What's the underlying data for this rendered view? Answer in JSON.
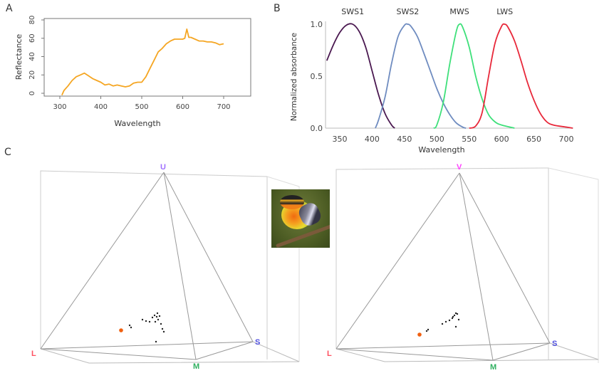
{
  "panels": {
    "a": "A",
    "b": "B",
    "c": "C"
  },
  "chart_data": [
    {
      "type": "line",
      "xlabel": "Wavelength",
      "ylabel": "Reflectance",
      "xlim": [
        260,
        750
      ],
      "ylim": [
        -3,
        85
      ],
      "xticks": [
        "300",
        "400",
        "500",
        "600",
        "700"
      ],
      "yticks": [
        "0",
        "20",
        "40",
        "60",
        "80"
      ],
      "color": "#f5a623",
      "x": [
        305,
        310,
        320,
        330,
        340,
        350,
        360,
        370,
        380,
        390,
        400,
        410,
        420,
        430,
        440,
        450,
        460,
        470,
        480,
        490,
        500,
        510,
        520,
        530,
        540,
        550,
        560,
        570,
        580,
        590,
        600,
        605,
        610,
        615,
        620,
        630,
        640,
        650,
        660,
        670,
        680,
        690,
        700
      ],
      "y": [
        -2,
        3,
        8,
        14,
        18,
        20,
        22,
        19,
        16,
        14,
        12,
        9,
        10,
        8,
        9,
        8,
        7,
        8,
        11,
        12,
        12,
        18,
        27,
        36,
        45,
        49,
        54,
        57,
        59,
        59,
        59,
        60,
        70,
        61,
        61,
        59,
        57,
        57,
        56,
        56,
        55,
        53,
        54
      ]
    },
    {
      "type": "line",
      "xlabel": "Wavelength",
      "ylabel": "Normalized absorbance",
      "xlim": [
        330,
        720
      ],
      "ylim": [
        0,
        1.0
      ],
      "xticks": [
        "350",
        "400",
        "450",
        "500",
        "550",
        "600",
        "650",
        "700"
      ],
      "yticks": [
        "0.0",
        "0.5",
        "1.0"
      ],
      "series": [
        {
          "name": "SWS1",
          "color": "#4a1850",
          "x": [
            330,
            340,
            350,
            360,
            370,
            380,
            390,
            400,
            410,
            420,
            430,
            435
          ],
          "y": [
            0.65,
            0.8,
            0.92,
            0.99,
            1.0,
            0.93,
            0.78,
            0.55,
            0.32,
            0.14,
            0.03,
            0
          ]
        },
        {
          "name": "SWS2",
          "color": "#6f8cc0",
          "x": [
            405,
            410,
            420,
            430,
            440,
            450,
            455,
            460,
            470,
            480,
            490,
            500,
            510,
            520,
            530,
            540,
            545
          ],
          "y": [
            0,
            0.08,
            0.3,
            0.62,
            0.88,
            0.99,
            1.0,
            0.98,
            0.88,
            0.72,
            0.55,
            0.38,
            0.24,
            0.13,
            0.05,
            0.01,
            0
          ]
        },
        {
          "name": "MWS",
          "color": "#3ee07a",
          "x": [
            495,
            500,
            510,
            520,
            530,
            535,
            540,
            550,
            560,
            570,
            580,
            590,
            600,
            620
          ],
          "y": [
            0,
            0.03,
            0.25,
            0.62,
            0.93,
            1.0,
            0.97,
            0.78,
            0.5,
            0.28,
            0.13,
            0.06,
            0.03,
            0
          ]
        },
        {
          "name": "LWS",
          "color": "#e8283a",
          "x": [
            550,
            560,
            570,
            580,
            590,
            600,
            605,
            610,
            620,
            630,
            640,
            650,
            660,
            670,
            680,
            700,
            710
          ],
          "y": [
            0,
            0.02,
            0.15,
            0.5,
            0.82,
            0.98,
            1.0,
            0.97,
            0.84,
            0.65,
            0.44,
            0.27,
            0.14,
            0.06,
            0.03,
            0.01,
            0
          ]
        }
      ]
    },
    {
      "type": "scatter",
      "title": "",
      "vertices": {
        "top": "U",
        "l": "L",
        "m": "M",
        "s": "S"
      },
      "vertex_colors": {
        "top": "#a070ff",
        "l": "#ff5060",
        "m": "#30b060",
        "s": "#5050e0"
      },
      "highlight_color": "#f06010"
    },
    {
      "type": "scatter",
      "title": "",
      "vertices": {
        "top": "V",
        "l": "L",
        "m": "M",
        "s": "S"
      },
      "vertex_colors": {
        "top": "#ff40ff",
        "l": "#ff5060",
        "m": "#30b060",
        "s": "#5050e0"
      },
      "highlight_color": "#f06010"
    }
  ]
}
